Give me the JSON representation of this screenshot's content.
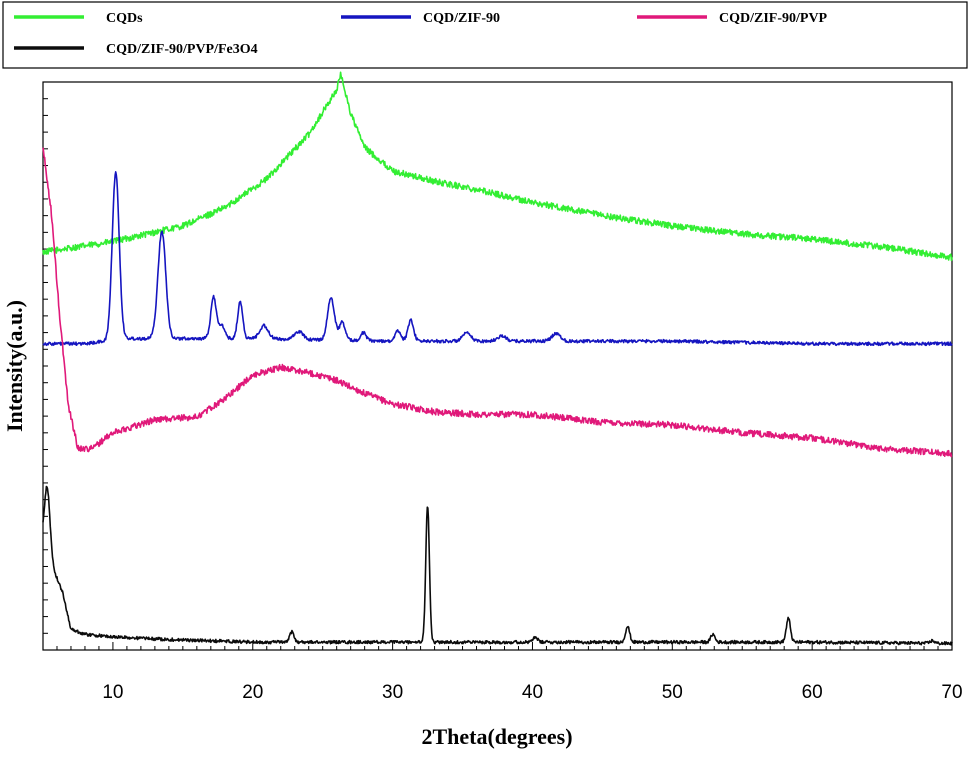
{
  "chart_data": {
    "type": "line",
    "xlabel": "2Theta(degrees)",
    "ylabel": "Intensity(a.u.)",
    "xlim": [
      5,
      70
    ],
    "x_ticks": [
      10,
      20,
      30,
      40,
      50,
      60,
      70
    ],
    "y_tick_labels_shown": false,
    "grid": false,
    "legend_position": "top",
    "series": [
      {
        "name": "CQDs",
        "color": "#33ee33",
        "offset": 0.7,
        "baseline": [
          [
            5,
            0.1
          ],
          [
            10,
            0.14
          ],
          [
            15,
            0.2
          ],
          [
            18,
            0.27
          ],
          [
            21,
            0.38
          ],
          [
            24,
            0.55
          ],
          [
            26,
            0.72
          ],
          [
            26.3,
            0.78
          ],
          [
            27,
            0.63
          ],
          [
            28,
            0.5
          ],
          [
            30,
            0.41
          ],
          [
            33,
            0.37
          ],
          [
            36,
            0.34
          ],
          [
            40,
            0.29
          ],
          [
            45,
            0.24
          ],
          [
            50,
            0.2
          ],
          [
            55,
            0.17
          ],
          [
            60,
            0.15
          ],
          [
            65,
            0.12
          ],
          [
            70,
            0.08
          ]
        ],
        "peaks": [],
        "noise": 0.012
      },
      {
        "name": "CQD/ZIF-90",
        "color": "#1515c0",
        "offset": 0.35,
        "baseline": [
          [
            5,
            0.1
          ],
          [
            8,
            0.1
          ],
          [
            9.5,
            0.11
          ],
          [
            11,
            0.12
          ],
          [
            20,
            0.12
          ],
          [
            30,
            0.11
          ],
          [
            40,
            0.11
          ],
          [
            50,
            0.11
          ],
          [
            60,
            0.1
          ],
          [
            70,
            0.1
          ]
        ],
        "peaks": [
          [
            10.2,
            0.64,
            0.25
          ],
          [
            13.5,
            0.41,
            0.28
          ],
          [
            17.2,
            0.16,
            0.2
          ],
          [
            17.8,
            0.05,
            0.2
          ],
          [
            19.1,
            0.14,
            0.18
          ],
          [
            20.8,
            0.05,
            0.3
          ],
          [
            23.3,
            0.03,
            0.3
          ],
          [
            25.6,
            0.16,
            0.25
          ],
          [
            26.4,
            0.07,
            0.2
          ],
          [
            27.9,
            0.03,
            0.2
          ],
          [
            30.4,
            0.04,
            0.2
          ],
          [
            31.3,
            0.08,
            0.2
          ],
          [
            35.3,
            0.03,
            0.3
          ],
          [
            37.8,
            0.02,
            0.3
          ],
          [
            41.7,
            0.03,
            0.3
          ]
        ],
        "noise": 0.006
      },
      {
        "name": "CQD/ZIF-90/PVP",
        "color": "#e0197a",
        "offset": 0.0,
        "baseline": [
          [
            5,
            1.2
          ],
          [
            5.6,
            0.95
          ],
          [
            6.2,
            0.55
          ],
          [
            6.8,
            0.22
          ],
          [
            7.5,
            0.05
          ],
          [
            8.5,
            0.05
          ],
          [
            10,
            0.11
          ],
          [
            13,
            0.16
          ],
          [
            16,
            0.17
          ],
          [
            18,
            0.24
          ],
          [
            20,
            0.33
          ],
          [
            22,
            0.36
          ],
          [
            24,
            0.34
          ],
          [
            26,
            0.31
          ],
          [
            28,
            0.26
          ],
          [
            30,
            0.22
          ],
          [
            33,
            0.19
          ],
          [
            36,
            0.18
          ],
          [
            40,
            0.18
          ],
          [
            45,
            0.15
          ],
          [
            50,
            0.14
          ],
          [
            55,
            0.11
          ],
          [
            60,
            0.09
          ],
          [
            65,
            0.05
          ],
          [
            70,
            0.03
          ]
        ],
        "peaks": [],
        "noise": 0.012
      },
      {
        "name": "CQD/ZIF-90/PVP/Fe3O4",
        "color": "#0c0c0c",
        "offset": -0.7,
        "baseline": [
          [
            5,
            0.38
          ],
          [
            5.8,
            0.28
          ],
          [
            6.4,
            0.2
          ],
          [
            7,
            0.06
          ],
          [
            8,
            0.04
          ],
          [
            10,
            0.03
          ],
          [
            14,
            0.02
          ],
          [
            20,
            0.01
          ],
          [
            30,
            0.01
          ],
          [
            40,
            0.01
          ],
          [
            50,
            0.01
          ],
          [
            60,
            0.01
          ],
          [
            70,
            0.005
          ]
        ],
        "peaks": [
          [
            5.3,
            0.26,
            0.2
          ],
          [
            22.8,
            0.04,
            0.15
          ],
          [
            32.5,
            0.52,
            0.13
          ],
          [
            40.2,
            0.02,
            0.15
          ],
          [
            46.8,
            0.06,
            0.15
          ],
          [
            52.9,
            0.03,
            0.15
          ],
          [
            58.3,
            0.09,
            0.15
          ],
          [
            68.6,
            0.01,
            0.15
          ]
        ],
        "noise": 0.006
      }
    ]
  }
}
